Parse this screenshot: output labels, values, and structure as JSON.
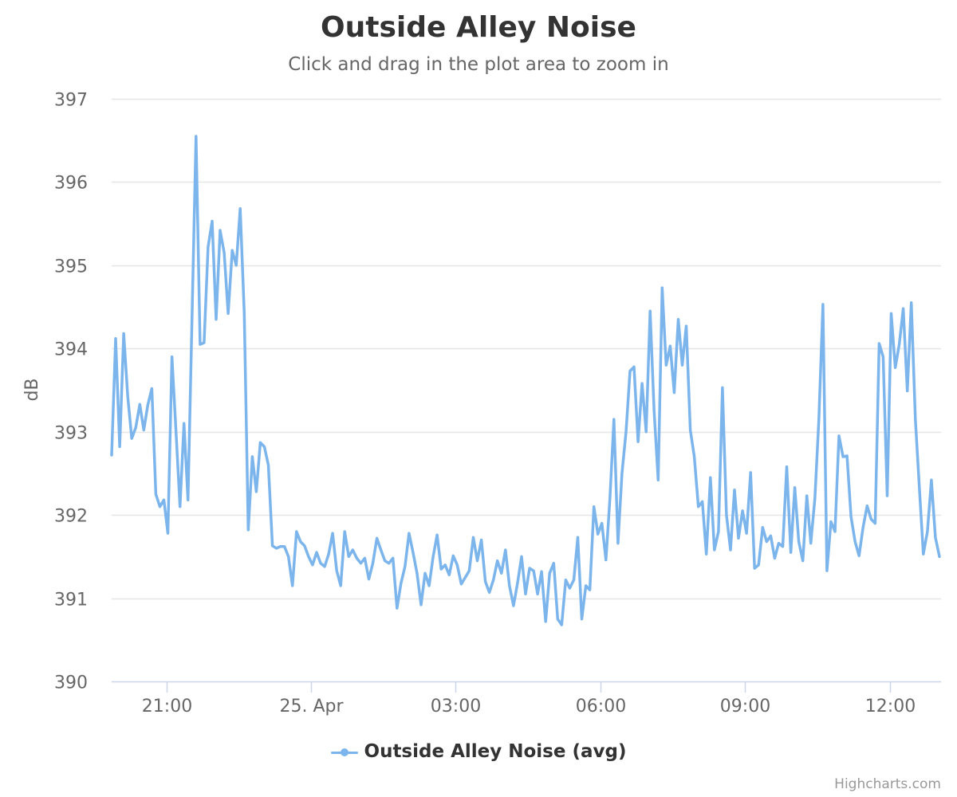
{
  "colors": {
    "series": "#7cb5ec",
    "grid": "#e6e6e6",
    "axis_line": "#ccd6eb",
    "tick_label": "#666666",
    "title": "#333333"
  },
  "chart_data": {
    "type": "line",
    "title": "Outside Alley Noise",
    "subtitle": "Click and drag in the plot area to zoom in",
    "credits": "Highcharts.com",
    "ylabel": "dB",
    "xlabel": "",
    "ylim": [
      390,
      397
    ],
    "yticks": [
      390,
      391,
      392,
      393,
      394,
      395,
      396,
      397
    ],
    "xlim": [
      "2019-04-24T19:52",
      "2019-04-25T13:04"
    ],
    "xticks": [
      {
        "t": "2019-04-24T21:00",
        "label": "21:00"
      },
      {
        "t": "2019-04-25T00:00",
        "label": "25. Apr"
      },
      {
        "t": "2019-04-25T03:00",
        "label": "03:00"
      },
      {
        "t": "2019-04-25T06:00",
        "label": "06:00"
      },
      {
        "t": "2019-04-25T09:00",
        "label": "09:00"
      },
      {
        "t": "2019-04-25T12:00",
        "label": "12:00"
      }
    ],
    "grid": true,
    "legend_position": "bottom-center",
    "series": [
      {
        "name": "Outside Alley Noise (avg)",
        "x_start": "2019-04-24T19:52",
        "interval_minutes": 5,
        "values": [
          392.72,
          394.12,
          392.82,
          394.18,
          393.42,
          392.92,
          393.05,
          393.33,
          393.02,
          393.32,
          393.52,
          392.25,
          392.1,
          392.18,
          391.78,
          393.9,
          393.02,
          392.1,
          393.1,
          392.18,
          394.38,
          396.55,
          394.05,
          394.07,
          395.22,
          395.53,
          394.35,
          395.42,
          395.15,
          394.42,
          395.18,
          395,
          395.68,
          394.42,
          391.82,
          392.7,
          392.28,
          392.87,
          392.82,
          392.6,
          391.63,
          391.6,
          391.62,
          391.62,
          391.5,
          391.15,
          391.8,
          391.68,
          391.63,
          391.5,
          391.4,
          391.55,
          391.42,
          391.38,
          391.53,
          391.78,
          391.33,
          391.15,
          391.8,
          391.5,
          391.58,
          391.48,
          391.42,
          391.48,
          391.23,
          391.42,
          391.72,
          391.58,
          391.45,
          391.42,
          391.48,
          390.88,
          391.18,
          391.38,
          391.78,
          391.55,
          391.3,
          390.92,
          391.3,
          391.15,
          391.5,
          391.76,
          391.35,
          391.4,
          391.28,
          391.51,
          391.4,
          391.17,
          391.25,
          391.33,
          391.73,
          391.45,
          391.7,
          391.2,
          391.07,
          391.22,
          391.45,
          391.3,
          391.58,
          391.15,
          390.91,
          391.18,
          391.5,
          391.05,
          391.36,
          391.33,
          391.05,
          391.32,
          390.72,
          391.3,
          391.42,
          390.75,
          390.68,
          391.22,
          391.12,
          391.22,
          391.73,
          390.75,
          391.15,
          391.1,
          392.1,
          391.77,
          391.9,
          391.46,
          392.2,
          393.15,
          391.66,
          392.5,
          393,
          393.73,
          393.78,
          392.88,
          393.58,
          393,
          394.45,
          393.25,
          392.42,
          394.73,
          393.8,
          394.03,
          393.47,
          394.35,
          393.8,
          394.27,
          393.02,
          392.7,
          392.1,
          392.16,
          391.53,
          392.45,
          391.58,
          391.8,
          393.53,
          392,
          391.58,
          392.3,
          391.72,
          392.05,
          391.78,
          392.51,
          391.36,
          391.4,
          391.85,
          391.68,
          391.75,
          391.48,
          391.66,
          391.62,
          392.58,
          391.55,
          392.33,
          391.68,
          391.45,
          392.23,
          391.66,
          392.2,
          393.15,
          394.53,
          391.33,
          391.92,
          391.8,
          392.95,
          392.7,
          392.71,
          391.98,
          391.68,
          391.51,
          391.85,
          392.11,
          391.95,
          391.9,
          394.06,
          393.9,
          392.23,
          394.42,
          393.77,
          394.05,
          394.48,
          393.49,
          394.55,
          393.15,
          392.33,
          391.53,
          391.8,
          392.42,
          391.73,
          391.5
        ]
      }
    ]
  }
}
